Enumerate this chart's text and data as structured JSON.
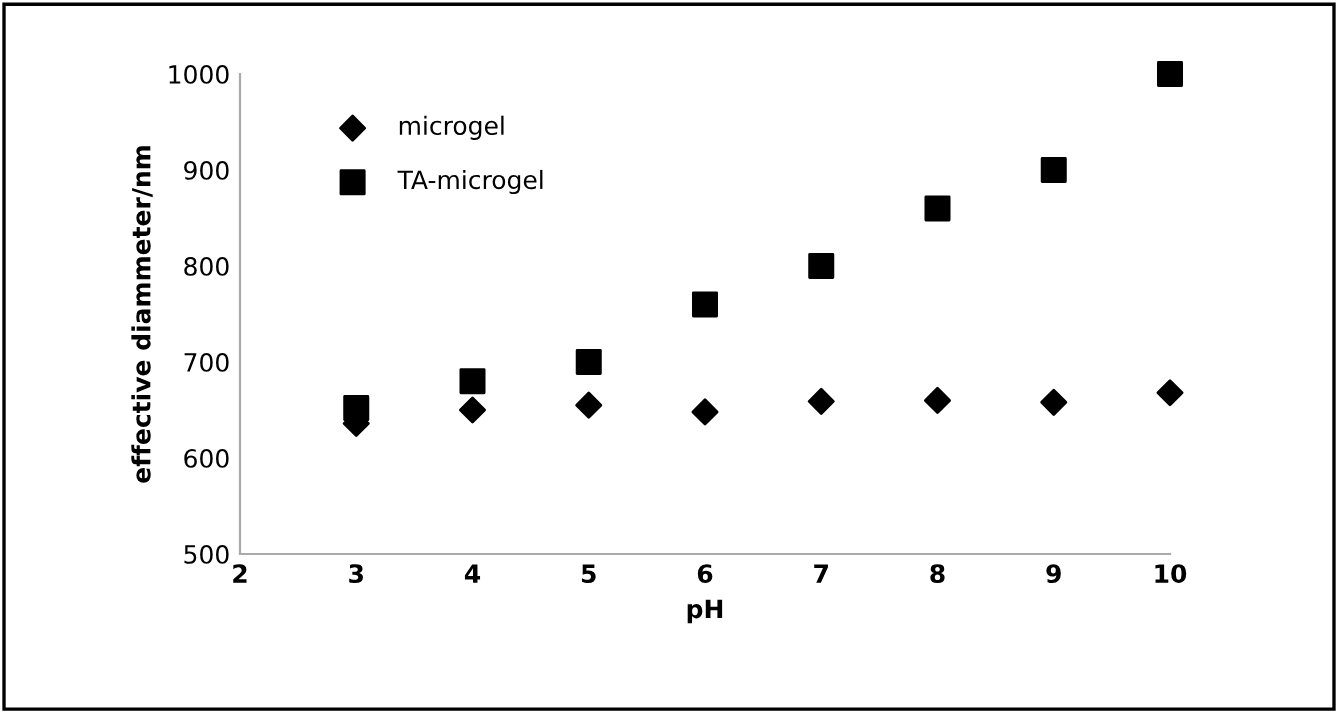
{
  "chart_data": {
    "type": "scatter",
    "xlabel": "pH",
    "ylabel": "effective diammeter/nm",
    "x": [
      3,
      4,
      5,
      6,
      7,
      8,
      9,
      10
    ],
    "series": [
      {
        "name": "microgel",
        "color": "#000000",
        "marker": "diamond",
        "values": [
          636,
          650,
          655,
          648,
          659,
          660,
          658,
          668
        ]
      },
      {
        "name": "TA-microgel",
        "color": "#000000",
        "marker": "square",
        "values": [
          652,
          680,
          700,
          760,
          800,
          860,
          900,
          1000
        ]
      }
    ],
    "xlim": [
      2,
      10
    ],
    "xticks": [
      2,
      3,
      4,
      5,
      6,
      7,
      8,
      9,
      10
    ],
    "ylim": [
      500,
      1000
    ],
    "yticks": [
      500,
      600,
      700,
      800,
      900,
      1000
    ],
    "grid": false,
    "legend": "top left"
  }
}
